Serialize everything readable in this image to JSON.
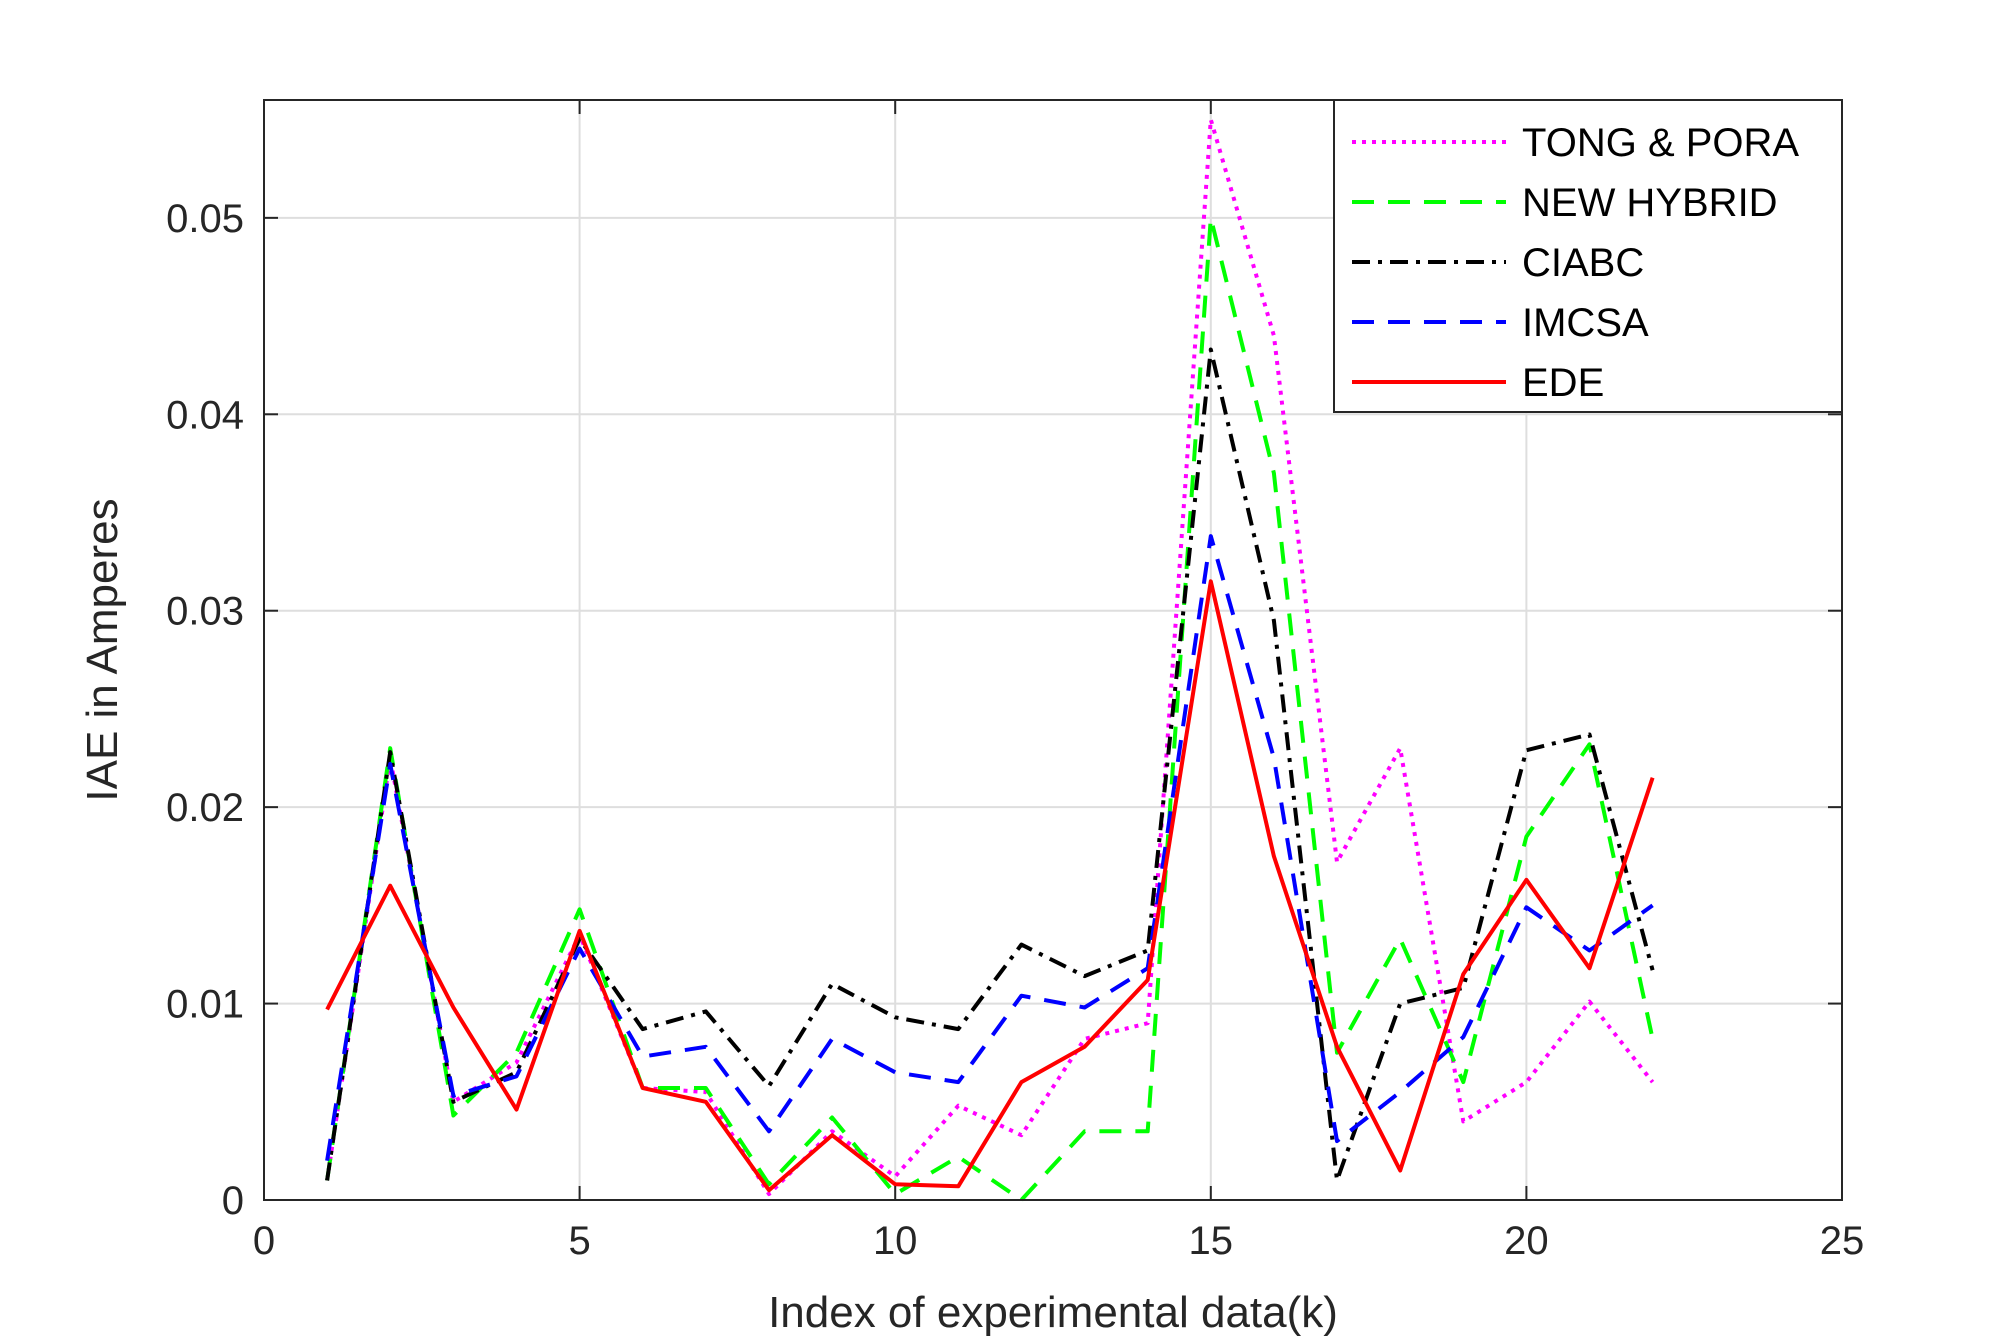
{
  "chart_data": {
    "type": "line",
    "title": "",
    "xlabel": "Index of experimental data(k)",
    "ylabel": "IAE in Amperes",
    "xlim": [
      0,
      25
    ],
    "ylim": [
      0,
      0.056
    ],
    "xticks": [
      0,
      5,
      10,
      15,
      20,
      25
    ],
    "xtick_labels": [
      "0",
      "5",
      "10",
      "15",
      "20",
      "25"
    ],
    "yticks": [
      0,
      0.01,
      0.02,
      0.03,
      0.04,
      0.05
    ],
    "ytick_labels": [
      "0",
      "0.01",
      "0.02",
      "0.03",
      "0.04",
      "0.05"
    ],
    "grid": true,
    "legend_position": "top-right",
    "x": [
      1,
      2,
      3,
      4,
      5,
      6,
      7,
      8,
      9,
      10,
      11,
      12,
      13,
      14,
      15,
      16,
      17,
      18,
      19,
      20,
      21,
      22
    ],
    "series": [
      {
        "name": "TONG & PORA",
        "color": "#ff00ff",
        "style": "dotted",
        "values": [
          0.001,
          0.0225,
          0.005,
          0.007,
          0.0135,
          0.0057,
          0.0055,
          0.0003,
          0.0035,
          0.0012,
          0.0048,
          0.0033,
          0.0082,
          0.009,
          0.055,
          0.044,
          0.0172,
          0.023,
          0.004,
          0.006,
          0.0101,
          0.006
        ]
      },
      {
        "name": "NEW HYBRID",
        "color": "#00ff00",
        "style": "dashed",
        "values": [
          0.001,
          0.023,
          0.0043,
          0.0075,
          0.0148,
          0.0057,
          0.0057,
          0.0008,
          0.0042,
          0.0003,
          0.0022,
          0.0,
          0.0035,
          0.0035,
          0.05,
          0.037,
          0.0075,
          0.0133,
          0.006,
          0.0185,
          0.0232,
          0.0082
        ]
      },
      {
        "name": "CIABC",
        "color": "#000000",
        "style": "dashdot",
        "values": [
          0.001,
          0.0228,
          0.005,
          0.0065,
          0.0133,
          0.0087,
          0.0096,
          0.0058,
          0.011,
          0.0093,
          0.0087,
          0.013,
          0.0114,
          0.0127,
          0.0433,
          0.0295,
          0.001,
          0.01,
          0.0108,
          0.0229,
          0.0237,
          0.0117
        ]
      },
      {
        "name": "IMCSA",
        "color": "#0000ff",
        "style": "dashed",
        "values": [
          0.002,
          0.0222,
          0.0053,
          0.0063,
          0.0128,
          0.0073,
          0.0078,
          0.0035,
          0.0082,
          0.0065,
          0.006,
          0.0104,
          0.0098,
          0.0118,
          0.0338,
          0.0225,
          0.003,
          0.0055,
          0.0083,
          0.0149,
          0.0127,
          0.015
        ]
      },
      {
        "name": "EDE",
        "color": "#ff0000",
        "style": "solid",
        "values": [
          0.0097,
          0.016,
          0.0098,
          0.0046,
          0.0137,
          0.0057,
          0.005,
          0.0005,
          0.0033,
          0.0008,
          0.0007,
          0.006,
          0.0078,
          0.0112,
          0.0315,
          0.0175,
          0.0078,
          0.0015,
          0.0115,
          0.0163,
          0.0118,
          0.0215
        ]
      }
    ]
  }
}
